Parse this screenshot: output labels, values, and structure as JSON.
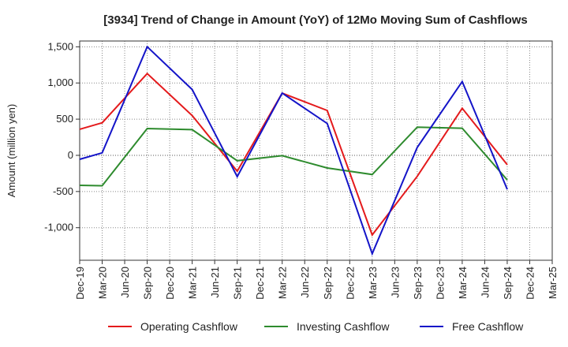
{
  "chart_data": {
    "type": "line",
    "title": "[3934]  Trend of Change in Amount (YoY) of 12Mo Moving Sum of Cashflows",
    "xlabel": "",
    "ylabel": "Amount (million yen)",
    "ylim": [
      -1450,
      1580
    ],
    "yticks": [
      1500,
      1000,
      500,
      0,
      -500,
      -1000
    ],
    "ytick_labels": [
      "1,500",
      "1,000",
      "500",
      "0",
      "-500",
      "-1,000"
    ],
    "categories": [
      "Dec-19",
      "Mar-20",
      "Jun-20",
      "Sep-20",
      "Dec-20",
      "Mar-21",
      "Jun-21",
      "Sep-21",
      "Dec-21",
      "Mar-22",
      "Jun-22",
      "Sep-22",
      "Dec-22",
      "Mar-23",
      "Jun-23",
      "Sep-23",
      "Dec-23",
      "Mar-24",
      "Jun-24",
      "Sep-24",
      "Dec-24",
      "Mar-25"
    ],
    "series": [
      {
        "name": "Operating Cashflow",
        "color": "#e41a1c",
        "values": [
          360,
          450,
          null,
          1130,
          null,
          550,
          null,
          -220,
          null,
          860,
          null,
          620,
          null,
          -1100,
          null,
          -290,
          null,
          650,
          null,
          -130,
          null,
          null
        ]
      },
      {
        "name": "Investing Cashflow",
        "color": "#2e8b2e",
        "values": [
          -415,
          -420,
          null,
          370,
          null,
          355,
          null,
          -75,
          null,
          -5,
          null,
          -175,
          null,
          -265,
          null,
          390,
          null,
          375,
          null,
          -340,
          null,
          null
        ]
      },
      {
        "name": "Free Cashflow",
        "color": "#1414c8",
        "values": [
          -55,
          35,
          null,
          1500,
          null,
          910,
          null,
          -295,
          null,
          860,
          null,
          440,
          null,
          -1360,
          null,
          110,
          null,
          1020,
          null,
          -470,
          null,
          null
        ]
      }
    ],
    "grid": true,
    "legend": "bottom"
  }
}
